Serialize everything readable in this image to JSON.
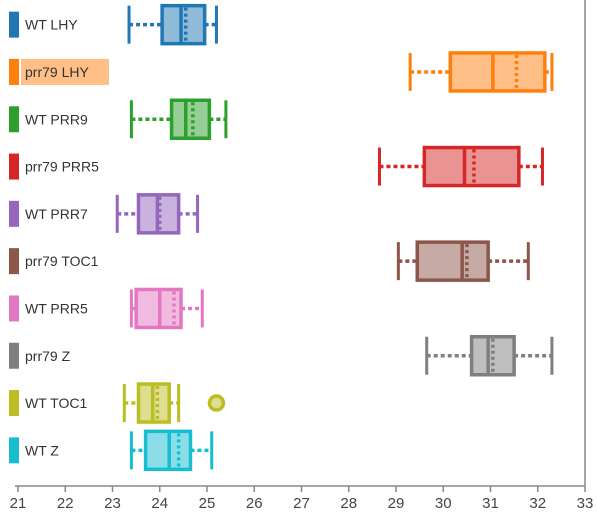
{
  "chart_data": {
    "type": "boxplot",
    "orientation": "horizontal",
    "x_range": [
      21,
      33
    ],
    "x_ticks": [
      21,
      22,
      23,
      24,
      25,
      26,
      27,
      28,
      29,
      30,
      31,
      32,
      33
    ],
    "grid": false,
    "highlighted_category": "prr79 LHY",
    "series": [
      {
        "name": "WT LHY",
        "color": "#1f77b4",
        "whisker_low": 23.35,
        "q1": 24.05,
        "median": 24.45,
        "mean": 24.55,
        "q3": 24.95,
        "whisker_high": 25.2,
        "outliers": []
      },
      {
        "name": "prr79 LHY",
        "color": "#ff7f0e",
        "whisker_low": 29.3,
        "q1": 30.15,
        "median": 31.05,
        "mean": 31.55,
        "q3": 32.15,
        "whisker_high": 32.3,
        "outliers": []
      },
      {
        "name": "WT PRR9",
        "color": "#2ca02c",
        "whisker_low": 23.4,
        "q1": 24.25,
        "median": 24.55,
        "mean": 24.7,
        "q3": 25.05,
        "whisker_high": 25.4,
        "outliers": []
      },
      {
        "name": "prr79 PRR5",
        "color": "#d62728",
        "whisker_low": 28.65,
        "q1": 29.6,
        "median": 30.45,
        "mean": 30.65,
        "q3": 31.6,
        "whisker_high": 32.1,
        "outliers": []
      },
      {
        "name": "WT PRR7",
        "color": "#9467bd",
        "whisker_low": 23.1,
        "q1": 23.55,
        "median": 23.95,
        "mean": 24.0,
        "q3": 24.4,
        "whisker_high": 24.8,
        "outliers": []
      },
      {
        "name": "prr79 TOC1",
        "color": "#8c564b",
        "whisker_low": 29.05,
        "q1": 29.45,
        "median": 30.4,
        "mean": 30.5,
        "q3": 30.95,
        "whisker_high": 31.8,
        "outliers": []
      },
      {
        "name": "WT PRR5",
        "color": "#e377c2",
        "whisker_low": 23.4,
        "q1": 23.5,
        "median": 24.0,
        "mean": 24.3,
        "q3": 24.45,
        "whisker_high": 24.9,
        "outliers": []
      },
      {
        "name": "prr79 Z",
        "color": "#7f7f7f",
        "whisker_low": 29.65,
        "q1": 30.6,
        "median": 30.95,
        "mean": 31.05,
        "q3": 31.5,
        "whisker_high": 32.3,
        "outliers": []
      },
      {
        "name": "WT TOC1",
        "color": "#bcbd22",
        "whisker_low": 23.25,
        "q1": 23.55,
        "median": 23.85,
        "mean": 23.95,
        "q3": 24.2,
        "whisker_high": 24.4,
        "outliers": [
          25.2
        ]
      },
      {
        "name": "WT Z",
        "color": "#17becf",
        "whisker_low": 23.4,
        "q1": 23.7,
        "median": 24.2,
        "mean": 24.4,
        "q3": 24.65,
        "whisker_high": 25.1,
        "outliers": []
      }
    ]
  }
}
